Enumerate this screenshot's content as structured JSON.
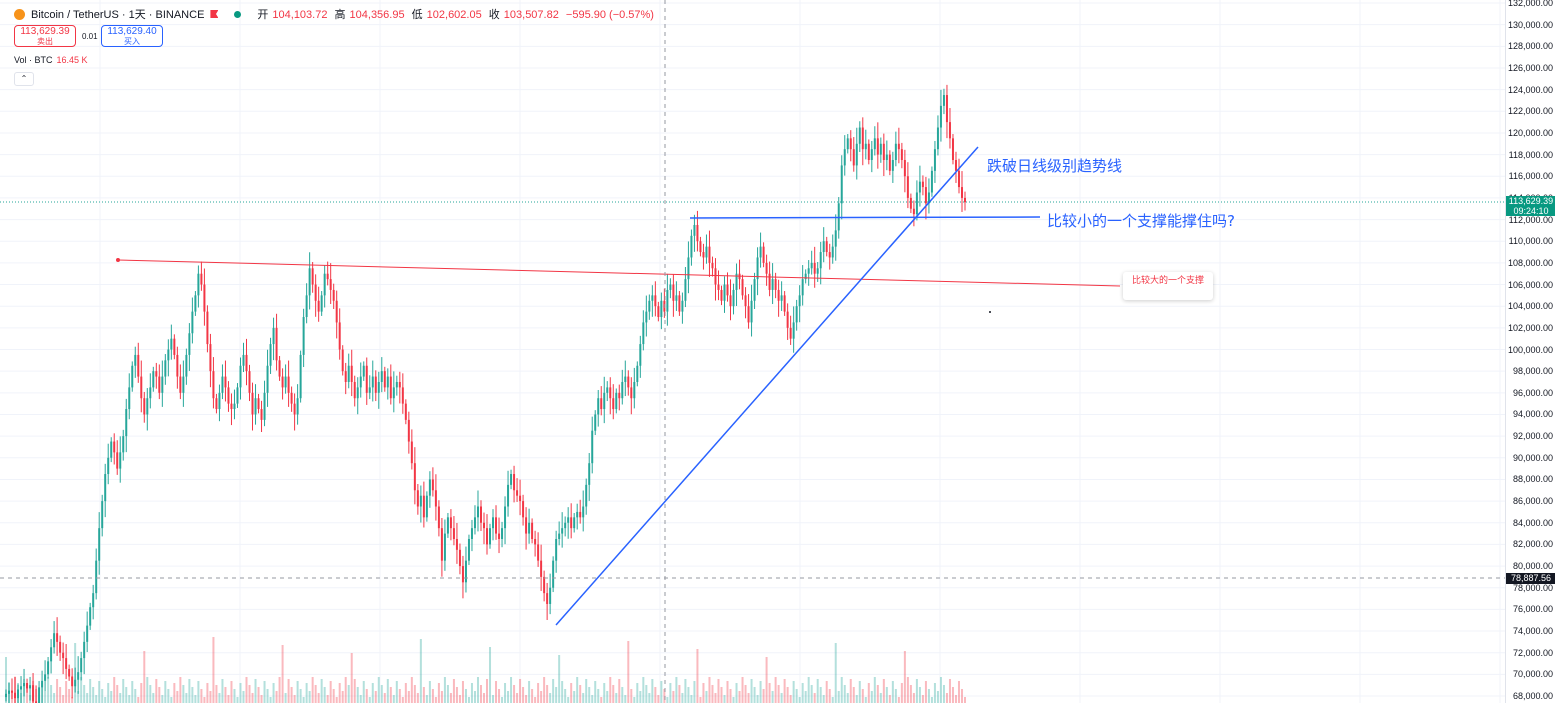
{
  "header": {
    "symbol": "Bitcoin / TetherUS · 1天 · BINANCE",
    "open_label": "开",
    "open_value": "104,103.72",
    "high_label": "高",
    "high_value": "104,356.95",
    "low_label": "低",
    "low_value": "102,602.05",
    "close_label": "收",
    "close_value": "103,507.82",
    "change": "−595.90 (−0.57%)"
  },
  "trade": {
    "sell_price": "113,629.39",
    "sell_label": "卖出",
    "spread": "0.01",
    "buy_price": "113,629.40",
    "buy_label": "买入"
  },
  "volume": {
    "label": "Vol · BTC",
    "value": "16.45 K"
  },
  "collapse_icon": "chevron-up-icon",
  "annotations": {
    "break_trend": "跌破日线级别趋势线",
    "small_support": "比较小的一个支撑能撑住吗?",
    "big_support": "比较大的一个支撑"
  },
  "price_axis": {
    "ticks": [
      "132,000.00",
      "130,000.00",
      "128,000.00",
      "126,000.00",
      "124,000.00",
      "122,000.00",
      "120,000.00",
      "118,000.00",
      "116,000.00",
      "114,000.00",
      "112,000.00",
      "110,000.00",
      "108,000.00",
      "106,000.00",
      "104,000.00",
      "102,000.00",
      "100,000.00",
      "98,000.00",
      "96,000.00",
      "94,000.00",
      "92,000.00",
      "90,000.00",
      "88,000.00",
      "86,000.00",
      "84,000.00",
      "82,000.00",
      "80,000.00",
      "78,000.00",
      "76,000.00",
      "74,000.00",
      "72,000.00",
      "70,000.00",
      "68,000.00"
    ],
    "current_price": "113,629.39",
    "countdown": "09:24:10",
    "crosshair_price": "78,887.56"
  },
  "colors": {
    "up": "#26a69a",
    "down": "#f23645",
    "trend": "#2962ff",
    "support_red": "#f23645"
  },
  "chart_data": {
    "type": "candlestick",
    "ylim": [
      67500,
      132500
    ],
    "close": [
      68200,
      68500,
      68300,
      67800,
      68600,
      68900,
      69200,
      68700,
      69000,
      67500,
      67300,
      68800,
      69400,
      70000,
      71200,
      72500,
      73800,
      73000,
      72000,
      71500,
      70500,
      69800,
      68900,
      69500,
      70200,
      71500,
      73000,
      74500,
      76200,
      77500,
      80500,
      83500,
      86000,
      88500,
      90000,
      91500,
      90500,
      89000,
      90500,
      92000,
      94500,
      96500,
      98500,
      99500,
      97500,
      95500,
      94000,
      95500,
      96500,
      98000,
      97500,
      96000,
      97500,
      99000,
      100000,
      101000,
      99500,
      97500,
      96000,
      97500,
      99500,
      101500,
      103500,
      105000,
      107000,
      106000,
      103500,
      100500,
      98000,
      95500,
      94500,
      96000,
      97500,
      96500,
      95000,
      94500,
      95000,
      96500,
      98500,
      99500,
      98000,
      96000,
      94000,
      95500,
      94500,
      93500,
      96000,
      98500,
      100500,
      102000,
      99000,
      97500,
      96500,
      97500,
      96000,
      95000,
      94000,
      95500,
      99500,
      103000,
      105000,
      107500,
      106000,
      104500,
      103500,
      105000,
      107000,
      106500,
      105500,
      104500,
      102500,
      100000,
      98000,
      97000,
      98500,
      97000,
      95500,
      96500,
      97500,
      98500,
      96000,
      96500,
      97500,
      96000,
      97000,
      98000,
      96500,
      97500,
      95500,
      96500,
      97000,
      96500,
      95000,
      93500,
      91500,
      89500,
      87000,
      85500,
      86500,
      84500,
      86500,
      88000,
      87000,
      85500,
      83500,
      80500,
      83000,
      84500,
      83500,
      82500,
      81500,
      80000,
      78500,
      80500,
      82500,
      83500,
      84500,
      85500,
      84000,
      83500,
      82000,
      83500,
      84500,
      83000,
      82500,
      83500,
      85500,
      87500,
      88500,
      87000,
      86500,
      86000,
      84500,
      83000,
      84000,
      82500,
      82000,
      80500,
      79000,
      77500,
      76500,
      78000,
      80500,
      82500,
      83000,
      83500,
      84000,
      84500,
      83500,
      84500,
      85000,
      84500,
      85500,
      87500,
      89500,
      92500,
      94000,
      95500,
      94500,
      96000,
      96500,
      95500,
      94500,
      96000,
      95500,
      97000,
      97500,
      96500,
      95500,
      97000,
      98500,
      100500,
      102500,
      103500,
      104500,
      105000,
      104000,
      103000,
      104500,
      103500,
      105500,
      106000,
      104500,
      105000,
      103500,
      104500,
      106500,
      108500,
      110500,
      111500,
      110000,
      109000,
      108500,
      109500,
      108000,
      107500,
      106000,
      105500,
      104500,
      106000,
      105000,
      104000,
      105500,
      107000,
      106500,
      105000,
      104000,
      102500,
      104500,
      106500,
      108500,
      109500,
      108000,
      107000,
      105500,
      106500,
      105500,
      104500,
      105000,
      103500,
      102000,
      101000,
      102500,
      104000,
      105000,
      106500,
      107000,
      107500,
      108000,
      107000,
      107500,
      109000,
      110000,
      109000,
      108500,
      109500,
      111000,
      113500,
      117000,
      118500,
      119500,
      118500,
      117000,
      119000,
      120500,
      118500,
      119000,
      117500,
      118500,
      119500,
      118000,
      119000,
      117500,
      118000,
      116500,
      117500,
      119000,
      118500,
      117500,
      116000,
      114000,
      113000,
      112500,
      114500,
      115500,
      115000,
      113500,
      114500,
      116500,
      118500,
      120500,
      122500,
      123500,
      121000,
      119500,
      117500,
      116500,
      115000,
      114000,
      113600
    ]
  }
}
